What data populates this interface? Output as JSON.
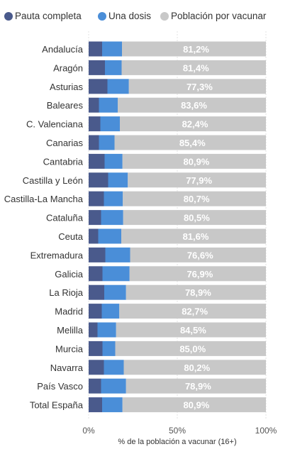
{
  "chart_data": {
    "type": "bar",
    "stacked": true,
    "orientation": "horizontal",
    "title": "",
    "xlabel": "% de la población a vacunar (16+)",
    "ylabel": "",
    "xlim": [
      0,
      100
    ],
    "x_ticks": [
      0,
      50,
      100
    ],
    "x_tick_labels": [
      "0%",
      "50%",
      "100%"
    ],
    "legend_position": "top",
    "grid": "vertical",
    "categories": [
      "Andalucía",
      "Aragón",
      "Asturias",
      "Baleares",
      "C. Valenciana",
      "Canarias",
      "Cantabria",
      "Castilla y León",
      "Castilla-La Mancha",
      "Cataluña",
      "Ceuta",
      "Extremadura",
      "Galicia",
      "La Rioja",
      "Madrid",
      "Melilla",
      "Murcia",
      "Navarra",
      "País Vasco",
      "Total España"
    ],
    "series": [
      {
        "name": "Pauta completa",
        "color": "#4a5a8c",
        "values": [
          7.6,
          9.2,
          10.6,
          5.8,
          6.6,
          5.8,
          9.0,
          11.0,
          8.6,
          7.0,
          5.4,
          9.4,
          7.8,
          8.8,
          7.4,
          5.0,
          7.8,
          8.6,
          7.0,
          7.6
        ]
      },
      {
        "name": "Una dosis",
        "color": "#4a8ed8",
        "values": [
          11.2,
          9.4,
          12.1,
          10.6,
          11.0,
          8.8,
          10.1,
          11.1,
          10.7,
          12.5,
          13.0,
          14.0,
          15.3,
          12.3,
          9.9,
          10.5,
          7.2,
          11.2,
          14.1,
          11.5
        ]
      },
      {
        "name": "Población por vacunar",
        "color": "#c8c8c8",
        "values": [
          81.2,
          81.4,
          77.3,
          83.6,
          82.4,
          85.4,
          80.9,
          77.9,
          80.7,
          80.5,
          81.6,
          76.6,
          76.9,
          78.9,
          82.7,
          84.5,
          85.0,
          80.2,
          78.9,
          80.9
        ],
        "labels": [
          "81,2%",
          "81,4%",
          "77,3%",
          "83,6%",
          "82,4%",
          "85,4%",
          "80,9%",
          "77,9%",
          "80,7%",
          "80,5%",
          "81,6%",
          "76,6%",
          "76,9%",
          "78,9%",
          "82,7%",
          "84,5%",
          "85,0%",
          "80,2%",
          "78,9%",
          "80,9%"
        ]
      }
    ]
  }
}
